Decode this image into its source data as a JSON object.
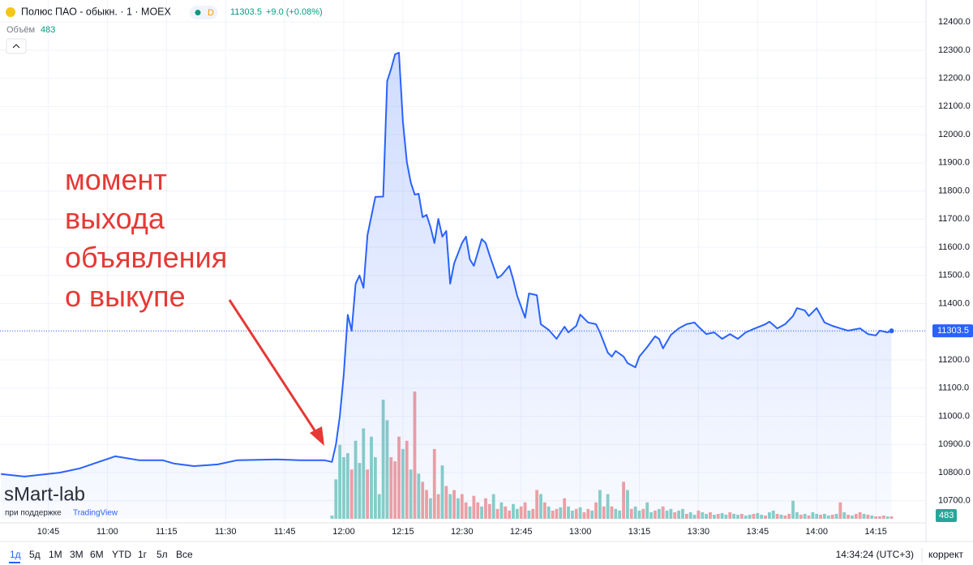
{
  "header": {
    "title": "Полюс ПАО - обыкн. · 1 · MOEX",
    "badge": "D",
    "change": "+9.0 (+0.08%)",
    "volume_label": "Объём"
  },
  "watermark": {
    "brand": "sMart-lab",
    "support": "при поддержке",
    "partner": "TradingView"
  },
  "toolbar": {
    "ranges": [
      "1д",
      "5д",
      "1М",
      "3М",
      "6М",
      "YTD",
      "1г",
      "5л",
      "Все"
    ],
    "clock": "14:34:24 (UTC+3)",
    "adjust": "коррект"
  },
  "annotation": [
    "момент",
    "выхода",
    "объявления",
    "о выкупе"
  ],
  "chart_data": {
    "type": "line",
    "color": "#2962ff",
    "grid": true,
    "ylim": [
      10636,
      12478
    ],
    "yticks": [
      {
        "value": 10700,
        "label": "10700.0"
      },
      {
        "value": 10800,
        "label": "10800.0"
      },
      {
        "value": 10900,
        "label": "10900.0"
      },
      {
        "value": 11000,
        "label": "11000.0"
      },
      {
        "value": 11100,
        "label": "11100.0"
      },
      {
        "value": 11200,
        "label": "11200.0"
      },
      {
        "value": 11300,
        "label": "11300.0"
      },
      {
        "value": 11400,
        "label": "11400.0"
      },
      {
        "value": 11500,
        "label": "11500.0"
      },
      {
        "value": 11600,
        "label": "11600.0"
      },
      {
        "value": 11700,
        "label": "11700.0"
      },
      {
        "value": 11800,
        "label": "11800.0"
      },
      {
        "value": 11900,
        "label": "11900.0"
      },
      {
        "value": 12000,
        "label": "12000.0"
      },
      {
        "value": 12100,
        "label": "12100.0"
      },
      {
        "value": 12200,
        "label": "12200.0"
      },
      {
        "value": 12300,
        "label": "12300.0"
      },
      {
        "value": 12400,
        "label": "12400.0"
      }
    ],
    "xticks": [
      "10:45",
      "11:00",
      "11:15",
      "11:30",
      "11:45",
      "12:00",
      "12:15",
      "12:30",
      "12:45",
      "13:00",
      "13:15",
      "13:30",
      "13:45",
      "14:00",
      "14:15"
    ],
    "x": [
      "10:33",
      "10:39",
      "10:48",
      "10:53",
      "11:02",
      "11:08",
      "11:14",
      "11:17",
      "11:22",
      "11:28",
      "11:33",
      "11:43",
      "11:49",
      "11:55",
      "11:57",
      "11:58",
      "11:59",
      "12:00",
      "12:01",
      "12:02",
      "12:03",
      "12:04",
      "12:05",
      "12:06",
      "12:08",
      "12:10",
      "12:11",
      "12:12",
      "12:13",
      "12:14",
      "12:15",
      "12:16",
      "12:17",
      "12:18",
      "12:19",
      "12:20",
      "12:21",
      "12:22",
      "12:23",
      "12:24",
      "12:25",
      "12:26",
      "12:27",
      "12:28",
      "12:30",
      "12:31",
      "12:32",
      "12:33",
      "12:35",
      "12:36",
      "12:37",
      "12:39",
      "12:40",
      "12:42",
      "12:43",
      "12:44",
      "12:46",
      "12:47",
      "12:49",
      "12:50",
      "12:52",
      "12:54",
      "12:56",
      "12:57",
      "12:59",
      "13:00",
      "13:02",
      "13:04",
      "13:05",
      "13:07",
      "13:08",
      "13:09",
      "13:11",
      "13:12",
      "13:14",
      "13:15",
      "13:17",
      "13:19",
      "13:20",
      "13:21",
      "13:23",
      "13:25",
      "13:27",
      "13:29",
      "13:30",
      "13:32",
      "13:34",
      "13:36",
      "13:38",
      "13:40",
      "13:42",
      "13:44",
      "13:47",
      "13:48",
      "13:50",
      "13:52",
      "13:54",
      "13:55",
      "13:57",
      "13:58",
      "14:00",
      "14:02",
      "14:04",
      "14:06",
      "14:08",
      "14:11",
      "14:13",
      "14:15",
      "14:16",
      "14:18",
      "14:19"
    ],
    "values": [
      10795,
      10786,
      10800,
      10815,
      10858,
      10844,
      10844,
      10832,
      10823,
      10829,
      10844,
      10847,
      10844,
      10844,
      10838,
      10900,
      11000,
      11150,
      11360,
      11304,
      11470,
      11500,
      11456,
      11643,
      11779,
      11780,
      12190,
      12233,
      12285,
      12291,
      12046,
      11902,
      11830,
      11787,
      11790,
      11707,
      11715,
      11672,
      11615,
      11701,
      11638,
      11658,
      11471,
      11543,
      11615,
      11638,
      11557,
      11534,
      11629,
      11615,
      11572,
      11491,
      11500,
      11534,
      11485,
      11428,
      11350,
      11436,
      11430,
      11327,
      11307,
      11275,
      11318,
      11298,
      11321,
      11361,
      11333,
      11327,
      11298,
      11226,
      11212,
      11232,
      11212,
      11189,
      11174,
      11212,
      11246,
      11284,
      11275,
      11241,
      11289,
      11312,
      11327,
      11333,
      11318,
      11292,
      11298,
      11275,
      11292,
      11275,
      11298,
      11310,
      11327,
      11336,
      11312,
      11327,
      11356,
      11384,
      11376,
      11356,
      11384,
      11333,
      11321,
      11312,
      11304,
      11312,
      11292,
      11287,
      11304,
      11298,
      11303.5
    ],
    "y2lim": [
      0,
      30000
    ],
    "volume": {
      "x": [
        "11:57",
        "11:58",
        "11:59",
        "12:00",
        "12:01",
        "12:02",
        "12:03",
        "12:04",
        "12:05",
        "12:06",
        "12:07",
        "12:08",
        "12:09",
        "12:10",
        "12:11",
        "12:12",
        "12:13",
        "12:14",
        "12:15",
        "12:16",
        "12:17",
        "12:18",
        "12:19",
        "12:20",
        "12:21",
        "12:22",
        "12:23",
        "12:24",
        "12:25",
        "12:26",
        "12:27",
        "12:28",
        "12:29",
        "12:30",
        "12:31",
        "12:32",
        "12:33",
        "12:34",
        "12:35",
        "12:36",
        "12:37",
        "12:38",
        "12:39",
        "12:40",
        "12:41",
        "12:42",
        "12:43",
        "12:44",
        "12:45",
        "12:46",
        "12:47",
        "12:48",
        "12:49",
        "12:50",
        "12:51",
        "12:52",
        "12:53",
        "12:54",
        "12:55",
        "12:56",
        "12:57",
        "12:58",
        "12:59",
        "13:00",
        "13:01",
        "13:02",
        "13:03",
        "13:04",
        "13:05",
        "13:06",
        "13:07",
        "13:08",
        "13:09",
        "13:10",
        "13:11",
        "13:12",
        "13:13",
        "13:14",
        "13:15",
        "13:16",
        "13:17",
        "13:18",
        "13:19",
        "13:20",
        "13:21",
        "13:22",
        "13:23",
        "13:24",
        "13:25",
        "13:26",
        "13:27",
        "13:28",
        "13:29",
        "13:30",
        "13:31",
        "13:32",
        "13:33",
        "13:34",
        "13:35",
        "13:36",
        "13:37",
        "13:38",
        "13:39",
        "13:40",
        "13:41",
        "13:42",
        "13:43",
        "13:44",
        "13:45",
        "13:46",
        "13:47",
        "13:48",
        "13:49",
        "13:50",
        "13:51",
        "13:52",
        "13:53",
        "13:54",
        "13:55",
        "13:56",
        "13:57",
        "13:58",
        "13:59",
        "14:00",
        "14:01",
        "14:02",
        "14:03",
        "14:04",
        "14:05",
        "14:06",
        "14:07",
        "14:08",
        "14:09",
        "14:10",
        "14:11",
        "14:12",
        "14:13",
        "14:14",
        "14:15",
        "14:16",
        "14:17",
        "14:18",
        "14:19"
      ],
      "values": [
        640,
        7680,
        14400,
        12000,
        12800,
        9600,
        15200,
        10880,
        17600,
        9600,
        16000,
        12000,
        4800,
        23200,
        19200,
        12000,
        11200,
        16000,
        13600,
        15200,
        9600,
        24800,
        8800,
        7200,
        5600,
        4000,
        13600,
        4800,
        10400,
        6400,
        4800,
        5600,
        4000,
        4800,
        3200,
        2400,
        4480,
        3200,
        2400,
        4000,
        2880,
        4800,
        1920,
        3200,
        2400,
        1600,
        2880,
        1920,
        2400,
        3200,
        1600,
        1920,
        5600,
        4800,
        3200,
        2400,
        1600,
        1920,
        2240,
        4000,
        2400,
        1600,
        1920,
        2240,
        1280,
        1920,
        1600,
        3200,
        5600,
        2400,
        4800,
        2400,
        1920,
        1600,
        7200,
        5600,
        1920,
        2400,
        1600,
        1920,
        3200,
        1280,
        1600,
        1920,
        2400,
        1600,
        1920,
        1280,
        1600,
        1920,
        960,
        1280,
        800,
        1600,
        1280,
        960,
        1280,
        800,
        960,
        1120,
        800,
        1280,
        960,
        800,
        960,
        640,
        800,
        960,
        1120,
        800,
        640,
        1280,
        1600,
        960,
        800,
        640,
        960,
        3520,
        1280,
        800,
        960,
        640,
        1280,
        960,
        800,
        960,
        640,
        800,
        960,
        3200,
        1280,
        800,
        640,
        960,
        1280,
        960,
        800,
        640,
        480,
        480,
        640,
        480,
        483
      ],
      "colors": [
        "#89d0c7",
        "#89d0c7",
        "#89d0c7",
        "#89d0c7",
        "#89d0c7",
        "#f2a1a1",
        "#89d0c7",
        "#89d0c7",
        "#89d0c7",
        "#f2a1a1",
        "#89d0c7",
        "#89d0c7",
        "#89d0c7",
        "#89d0c7",
        "#89d0c7",
        "#f2a1a1",
        "#f2a1a1",
        "#f2a1a1",
        "#89d0c7",
        "#f2a1a1",
        "#89d0c7",
        "#f2a1a1",
        "#89d0c7",
        "#f2a1a1",
        "#f2a1a1",
        "#89d0c7",
        "#f2a1a1",
        "#f2a1a1",
        "#89d0c7",
        "#f2a1a1",
        "#89d0c7",
        "#f2a1a1",
        "#89d0c7",
        "#f2a1a1",
        "#f2a1a1",
        "#89d0c7",
        "#f2a1a1",
        "#f2a1a1",
        "#89d0c7",
        "#f2a1a1",
        "#f2a1a1",
        "#89d0c7",
        "#f2a1a1",
        "#89d0c7",
        "#f2a1a1",
        "#f2a1a1",
        "#89d0c7",
        "#89d0c7",
        "#f2a1a1",
        "#f2a1a1",
        "#89d0c7",
        "#f2a1a1",
        "#f2a1a1",
        "#89d0c7",
        "#f2a1a1",
        "#89d0c7",
        "#f2a1a1",
        "#f2a1a1",
        "#89d0c7",
        "#f2a1a1",
        "#89d0c7",
        "#89d0c7",
        "#f2a1a1",
        "#89d0c7",
        "#f2a1a1",
        "#f2a1a1",
        "#89d0c7",
        "#f2a1a1",
        "#89d0c7",
        "#f2a1a1",
        "#89d0c7",
        "#f2a1a1",
        "#89d0c7",
        "#89d0c7",
        "#f2a1a1",
        "#89d0c7",
        "#f2a1a1",
        "#89d0c7",
        "#89d0c7",
        "#f2a1a1",
        "#89d0c7",
        "#89d0c7",
        "#f2a1a1",
        "#89d0c7",
        "#f2a1a1",
        "#89d0c7",
        "#89d0c7",
        "#f2a1a1",
        "#89d0c7",
        "#89d0c7",
        "#f2a1a1",
        "#89d0c7",
        "#89d0c7",
        "#f2a1a1",
        "#89d0c7",
        "#89d0c7",
        "#f2a1a1",
        "#89d0c7",
        "#f2a1a1",
        "#89d0c7",
        "#89d0c7",
        "#f2a1a1",
        "#89d0c7",
        "#89d0c7",
        "#f2a1a1",
        "#89d0c7",
        "#89d0c7",
        "#f2a1a1",
        "#89d0c7",
        "#89d0c7",
        "#f2a1a1",
        "#89d0c7",
        "#89d0c7",
        "#f2a1a1",
        "#89d0c7",
        "#f2a1a1",
        "#f2a1a1",
        "#89d0c7",
        "#89d0c7",
        "#f2a1a1",
        "#89d0c7",
        "#f2a1a1",
        "#89d0c7",
        "#89d0c7",
        "#f2a1a1",
        "#89d0c7",
        "#89d0c7",
        "#f2a1a1",
        "#89d0c7",
        "#f2a1a1",
        "#89d0c7",
        "#f2a1a1",
        "#89d0c7",
        "#f2a1a1",
        "#f2a1a1",
        "#89d0c7",
        "#f2a1a1",
        "#89d0c7",
        "#f2a1a1",
        "#f2a1a1",
        "#f2a1a1",
        "#89d0c7",
        "#f2a1a1"
      ]
    }
  }
}
